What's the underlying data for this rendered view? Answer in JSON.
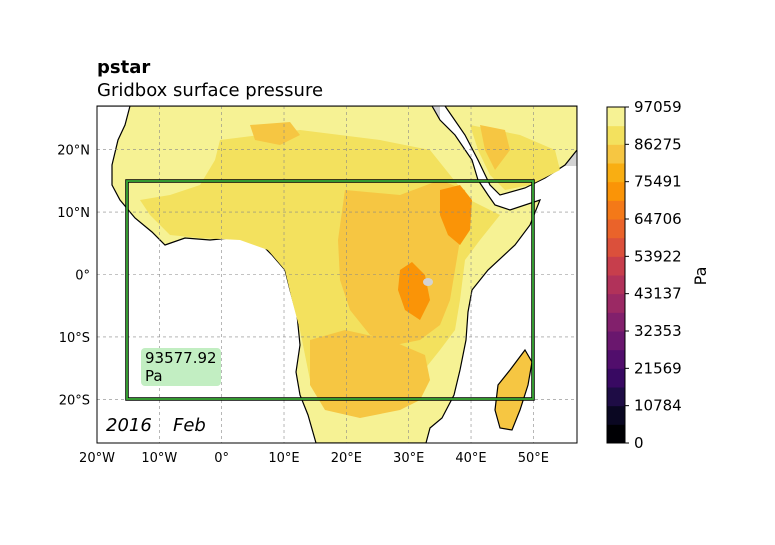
{
  "title": "pstar",
  "subtitle": "Gridbox surface pressure",
  "date": {
    "year": "2016",
    "month": "Feb"
  },
  "readout": {
    "value": "93577.92",
    "unit": "Pa"
  },
  "colorbar": {
    "unit": "Pa",
    "ticks": [
      "0",
      "10784",
      "21569",
      "32353",
      "43137",
      "53922",
      "64706",
      "75491",
      "86275",
      "97059"
    ],
    "colors": [
      "#000004",
      "#0a0722",
      "#1e0c45",
      "#380962",
      "#510e6c",
      "#6a176e",
      "#82206c",
      "#9b2964",
      "#b1325a",
      "#c73e4c",
      "#db503b",
      "#ea632a",
      "#f47918",
      "#fa9407",
      "#f9ae12",
      "#f6c642",
      "#f3e15e",
      "#f6f294"
    ]
  },
  "axes": {
    "lon_ticks": [
      "20°W",
      "10°W",
      "0°",
      "10°E",
      "20°E",
      "30°E",
      "40°E",
      "50°E"
    ],
    "lat_ticks": [
      "20°N",
      "10°N",
      "0°",
      "10°S",
      "20°S"
    ]
  },
  "region_box": {
    "lon_min": -15,
    "lon_max": 50,
    "lat_min": -20,
    "lat_max": 15
  },
  "colors": {
    "land_high": "#f3e15e",
    "land_mid": "#f6c642",
    "land_low": "#fa9407",
    "coast_light": "#f6f294",
    "nodata": "#d3d3d3",
    "box": "#3aaa35",
    "readout_bg": "#c2eec2"
  }
}
